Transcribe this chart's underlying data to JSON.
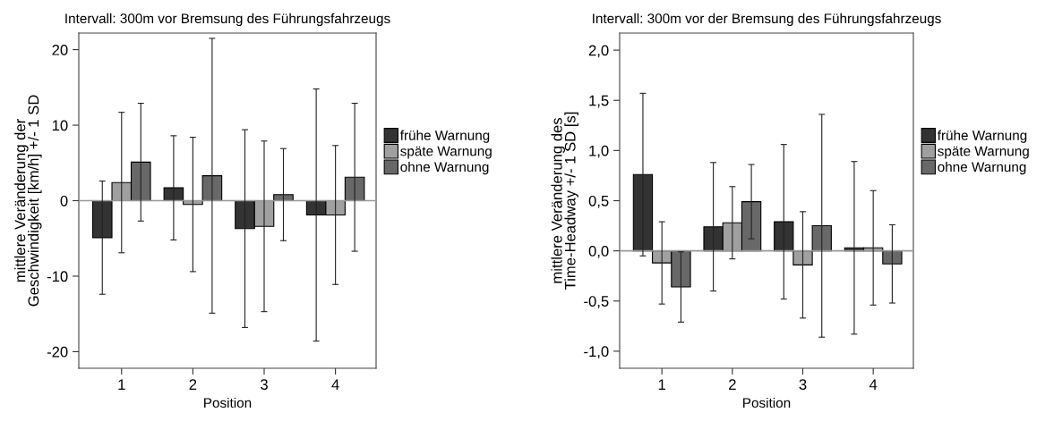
{
  "chart_data": [
    {
      "type": "bar",
      "title": "Intervall: 300m vor Bremsung des Führungsfahrzeugs",
      "xlabel": "Position",
      "ylabel": "mittlere Veränderung der\nGeschwindigkeit [km/h] +/- 1 SD",
      "categories": [
        "1",
        "2",
        "3",
        "4"
      ],
      "series": [
        {
          "name": "frühe Warnung",
          "color": "#333333",
          "values": [
            -4.9,
            1.7,
            -3.7,
            -1.9
          ],
          "errors": [
            7.5,
            6.9,
            13.1,
            16.7
          ]
        },
        {
          "name": "späte Warnung",
          "color": "#a0a0a0",
          "values": [
            2.4,
            -0.5,
            -3.4,
            -1.9
          ],
          "errors": [
            9.3,
            8.9,
            11.3,
            9.2
          ]
        },
        {
          "name": "ohne Warnung",
          "color": "#686868",
          "values": [
            5.1,
            3.3,
            0.8,
            3.1
          ],
          "errors": [
            7.8,
            18.2,
            6.1,
            9.8
          ]
        }
      ],
      "ylim": [
        -22.2,
        22.2
      ],
      "yticks": [
        -20,
        -10,
        0,
        10,
        20
      ],
      "ref_lines": [
        {
          "axis": "y",
          "value": 0,
          "color": "#999999"
        }
      ],
      "grid": false,
      "legend": "right"
    },
    {
      "type": "bar",
      "title": "Intervall: 300m vor der Bremsung des Führungsfahrzeugs",
      "xlabel": "Position",
      "ylabel": "mittlere Veränderung des\nTime-Headway +/- 1 SD [s]",
      "categories": [
        "1",
        "2",
        "3",
        "4"
      ],
      "series": [
        {
          "name": "frühe Warnung",
          "color": "#333333",
          "values": [
            0.76,
            0.24,
            0.29,
            0.03
          ],
          "errors": [
            0.81,
            0.64,
            0.77,
            0.86
          ]
        },
        {
          "name": "späte Warnung",
          "color": "#a0a0a0",
          "values": [
            -0.12,
            0.28,
            -0.14,
            0.03
          ],
          "errors": [
            0.41,
            0.36,
            0.53,
            0.57
          ]
        },
        {
          "name": "ohne Warnung",
          "color": "#686868",
          "values": [
            -0.36,
            0.49,
            0.25,
            -0.13
          ],
          "errors": [
            0.35,
            0.37,
            1.11,
            0.39
          ]
        }
      ],
      "ylim": [
        -1.17,
        2.17
      ],
      "yticks": [
        {
          "value": -1.0,
          "label": "-1,0"
        },
        {
          "value": -0.5,
          "label": "-0,5"
        },
        {
          "value": 0.0,
          "label": "0,0"
        },
        {
          "value": 0.5,
          "label": "0,5"
        },
        {
          "value": 1.0,
          "label": "1,0"
        },
        {
          "value": 1.5,
          "label": "1,5"
        },
        {
          "value": 2.0,
          "label": "2,0"
        }
      ],
      "ref_lines": [
        {
          "axis": "y",
          "value": 0,
          "color": "#999999"
        }
      ],
      "grid": false,
      "legend": "right"
    }
  ]
}
